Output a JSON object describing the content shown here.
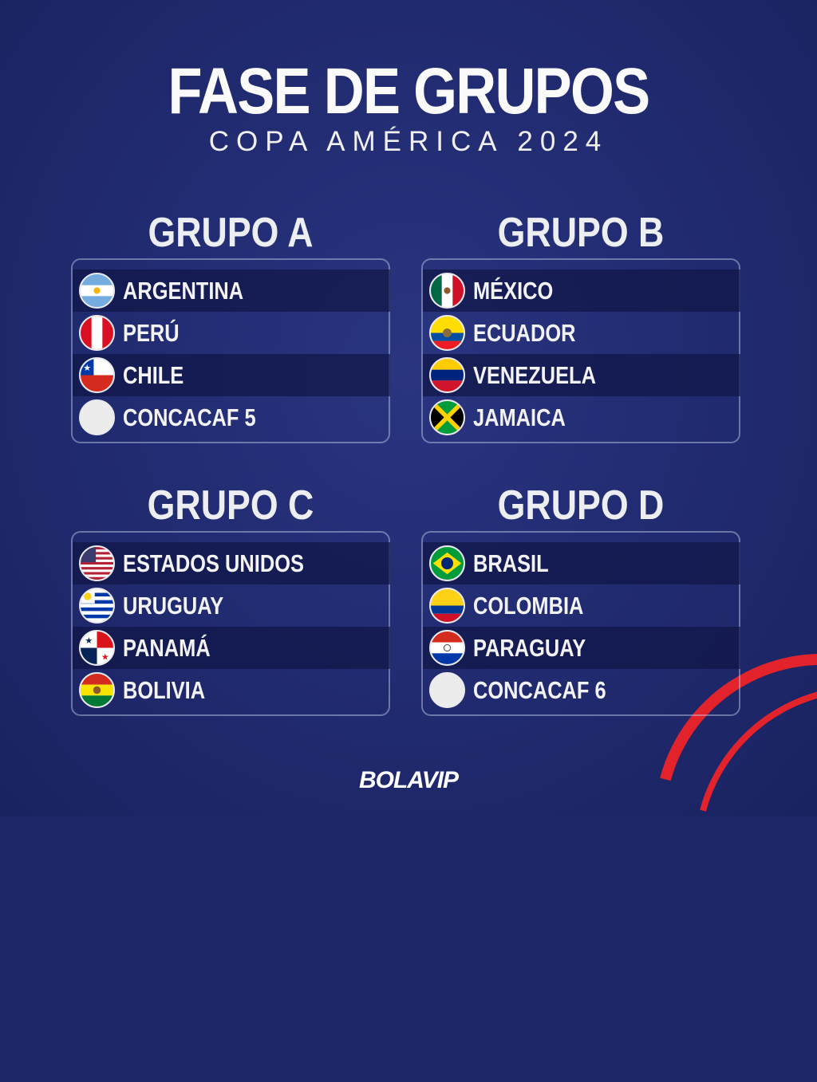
{
  "title": "FASE DE GRUPOS",
  "subtitle": "COPA AMÉRICA 2024",
  "brand": "BOLAVIP",
  "colors": {
    "background": "#222c72",
    "accent_red": "#e3232c",
    "text": "#f3f3f6"
  },
  "groups": [
    {
      "title": "GRUPO A",
      "teams": [
        {
          "name": "ARGENTINA",
          "flag": "argentina"
        },
        {
          "name": "PERÚ",
          "flag": "peru"
        },
        {
          "name": "CHILE",
          "flag": "chile"
        },
        {
          "name": "CONCACAF 5",
          "flag": "blank"
        }
      ]
    },
    {
      "title": "GRUPO B",
      "teams": [
        {
          "name": "MÉXICO",
          "flag": "mexico"
        },
        {
          "name": "ECUADOR",
          "flag": "ecuador"
        },
        {
          "name": "VENEZUELA",
          "flag": "venezuela"
        },
        {
          "name": "JAMAICA",
          "flag": "jamaica"
        }
      ]
    },
    {
      "title": "GRUPO C",
      "teams": [
        {
          "name": "ESTADOS UNIDOS",
          "flag": "usa"
        },
        {
          "name": "URUGUAY",
          "flag": "uruguay"
        },
        {
          "name": "PANAMÁ",
          "flag": "panama"
        },
        {
          "name": "BOLIVIA",
          "flag": "bolivia"
        }
      ]
    },
    {
      "title": "GRUPO D",
      "teams": [
        {
          "name": "BRASIL",
          "flag": "brazil"
        },
        {
          "name": "COLOMBIA",
          "flag": "colombia"
        },
        {
          "name": "PARAGUAY",
          "flag": "paraguay"
        },
        {
          "name": "CONCACAF 6",
          "flag": "blank"
        }
      ]
    }
  ]
}
